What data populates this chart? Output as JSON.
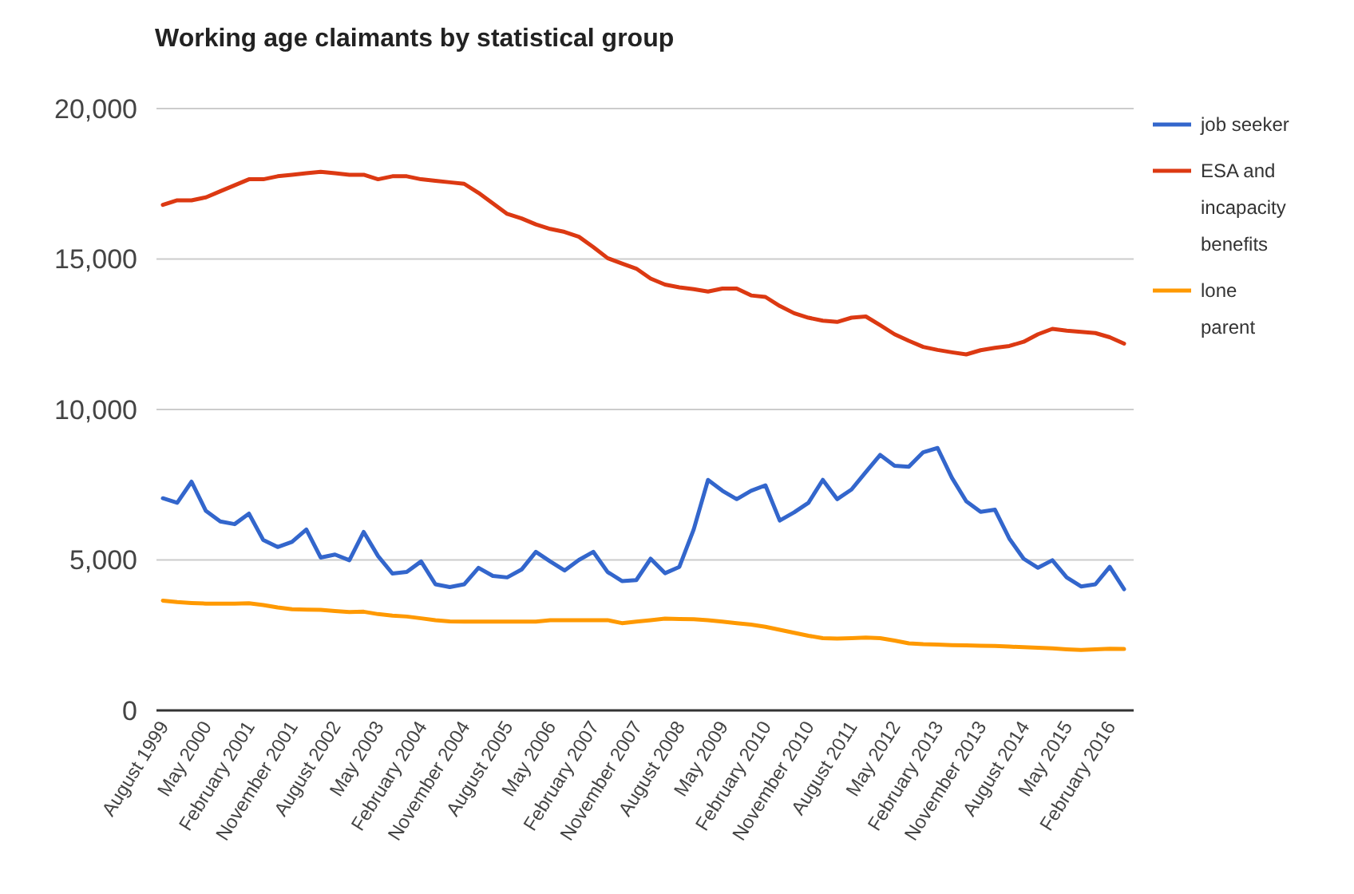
{
  "chart_data": {
    "type": "line",
    "title": "Working age claimants by statistical group",
    "categories": [
      "August 1999",
      null,
      null,
      "May 2000",
      null,
      null,
      "February 2001",
      null,
      null,
      "November 2001",
      null,
      null,
      "August 2002",
      null,
      null,
      "May 2003",
      null,
      null,
      "February 2004",
      null,
      null,
      "November 2004",
      null,
      null,
      "August 2005",
      null,
      null,
      "May 2006",
      null,
      null,
      "February 2007",
      null,
      null,
      "November 2007",
      null,
      null,
      "August 2008",
      null,
      null,
      "May 2009",
      null,
      null,
      "February 2010",
      null,
      null,
      "November 2010",
      null,
      null,
      "August 2011",
      null,
      null,
      "May 2012",
      null,
      null,
      "February 2013",
      null,
      null,
      "November 2013",
      null,
      null,
      "August 2014",
      null,
      null,
      "May 2015",
      null,
      null,
      "February 2016",
      null
    ],
    "series": [
      {
        "name": "job seeker",
        "color": "#3366cc",
        "values": [
          7050,
          6900,
          7600,
          6630,
          6280,
          6190,
          6540,
          5660,
          5430,
          5600,
          6010,
          5080,
          5180,
          4990,
          5930,
          5130,
          4550,
          4600,
          4950,
          4190,
          4100,
          4190,
          4740,
          4470,
          4420,
          4680,
          5270,
          4950,
          4650,
          5000,
          5270,
          4600,
          4300,
          4330,
          5040,
          4560,
          4770,
          6010,
          7660,
          7300,
          7020,
          7300,
          7480,
          6310,
          6580,
          6900,
          7660,
          7020,
          7340,
          7920,
          8490,
          8130,
          8100,
          8580,
          8720,
          7730,
          6950,
          6600,
          6670,
          5710,
          5040,
          4740,
          4990,
          4420,
          4120,
          4190,
          4770,
          4030
        ]
      },
      {
        "name": "ESA and incapacity benefits",
        "color": "#dc3912",
        "values": [
          16800,
          16950,
          16950,
          17050,
          17250,
          17450,
          17650,
          17650,
          17750,
          17800,
          17850,
          17900,
          17850,
          17800,
          17800,
          17650,
          17750,
          17750,
          17650,
          17600,
          17550,
          17500,
          17200,
          16850,
          16500,
          16350,
          16150,
          16000,
          15900,
          15740,
          15400,
          15030,
          14850,
          14680,
          14350,
          14150,
          14060,
          14000,
          13920,
          14020,
          14020,
          13790,
          13740,
          13440,
          13200,
          13050,
          12950,
          12910,
          13050,
          13090,
          12800,
          12500,
          12280,
          12080,
          11980,
          11900,
          11830,
          11970,
          12050,
          12110,
          12250,
          12500,
          12680,
          12620,
          12580,
          12540,
          12400,
          12190
        ]
      },
      {
        "name": "lone parent",
        "color": "#ff9900",
        "values": [
          3650,
          3600,
          3570,
          3550,
          3550,
          3550,
          3560,
          3500,
          3420,
          3360,
          3350,
          3340,
          3300,
          3270,
          3280,
          3200,
          3150,
          3120,
          3060,
          3000,
          2960,
          2950,
          2950,
          2950,
          2950,
          2950,
          2950,
          3000,
          3000,
          3000,
          3000,
          3000,
          2900,
          2950,
          3000,
          3050,
          3040,
          3030,
          3000,
          2950,
          2900,
          2850,
          2780,
          2680,
          2580,
          2480,
          2400,
          2390,
          2400,
          2420,
          2400,
          2320,
          2230,
          2200,
          2190,
          2170,
          2160,
          2150,
          2140,
          2120,
          2100,
          2080,
          2060,
          2030,
          2010,
          2030,
          2050,
          2040
        ]
      }
    ],
    "ylim": [
      0,
      20000
    ],
    "yticks": [
      {
        "value": 0,
        "label": "0"
      },
      {
        "value": 5000,
        "label": "5,000"
      },
      {
        "value": 10000,
        "label": "10,000"
      },
      {
        "value": 15000,
        "label": "15,000"
      },
      {
        "value": 20000,
        "label": "20,000"
      }
    ],
    "grid": "y",
    "legend": "right",
    "line_style": "solid",
    "marker": "none"
  }
}
